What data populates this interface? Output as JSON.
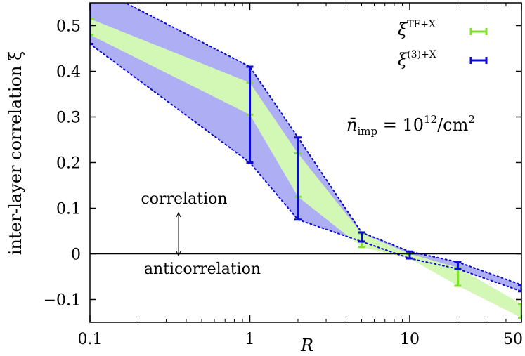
{
  "chart_data": {
    "type": "line",
    "xlabel": "R",
    "ylabel": "inter-layer correlation ξ",
    "xscale": "log",
    "xlim": [
      0.1,
      50
    ],
    "ylim": [
      -0.15,
      0.55
    ],
    "xticks": [
      {
        "value": 0.1,
        "label": "0.1"
      },
      {
        "value": 1,
        "label": "1"
      },
      {
        "value": 10,
        "label": "10"
      },
      {
        "value": 50,
        "label": "50"
      }
    ],
    "yticks": [
      {
        "value": 0.5,
        "label": "0.5"
      },
      {
        "value": 0.4,
        "label": "0.4"
      },
      {
        "value": 0.3,
        "label": "0.3"
      },
      {
        "value": 0.2,
        "label": "0.2"
      },
      {
        "value": 0.1,
        "label": "0.1"
      },
      {
        "value": 0,
        "label": "0"
      },
      {
        "value": -0.1,
        "label": "−0.1"
      }
    ],
    "series": [
      {
        "name": "ξ^(3)+X",
        "legend_base": "ξ",
        "legend_sup": "(3)+X",
        "color": "#0a0ad0",
        "band_color": "#aeaef5",
        "band_edge_style": "dotted",
        "x": [
          0.1,
          1,
          2,
          5,
          10,
          20,
          50
        ],
        "lower": [
          0.46,
          0.2,
          0.075,
          0.027,
          -0.01,
          -0.033,
          -0.082
        ],
        "upper": [
          0.59,
          0.41,
          0.255,
          0.047,
          0.005,
          -0.018,
          -0.068
        ]
      },
      {
        "name": "ξ^TF+X",
        "legend_base": "ξ",
        "legend_sup": "TF+X",
        "color": "#7fe22a",
        "band_color": "#d3f8b5",
        "band_edge_style": "none",
        "x": [
          0.1,
          1,
          2,
          5,
          10,
          20,
          50
        ],
        "lower": [
          0.48,
          0.305,
          0.125,
          0.015,
          -0.01,
          -0.07,
          -0.14
        ],
        "upper": [
          0.515,
          0.375,
          0.22,
          0.045,
          0.0,
          -0.03,
          -0.11
        ]
      }
    ],
    "annotations": {
      "density_lhs": "n̄",
      "density_sub": "imp",
      "density_rhs": " = 10",
      "density_exp": "12",
      "density_unit": "/cm",
      "density_unit_exp": "2",
      "correlation": "correlation",
      "anticorrelation": "anticorrelation"
    },
    "legend_position": "top-right",
    "grid": false
  }
}
